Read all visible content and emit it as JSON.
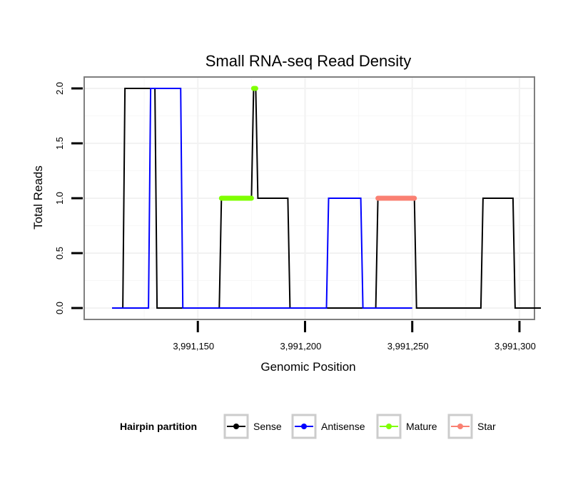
{
  "chart_data": {
    "type": "line",
    "title": "Small RNA-seq Read Density",
    "xlabel": "Genomic Position",
    "ylabel": "Total Reads",
    "xlim": [
      3991100,
      3991310
    ],
    "ylim": [
      0,
      2.05
    ],
    "x_ticks": [
      3991150,
      3991200,
      3991250,
      3991300
    ],
    "x_tick_labels": [
      "3,991,150",
      "3,991,200",
      "3,991,250",
      "3,991,300"
    ],
    "y_ticks": [
      0,
      0.5,
      1,
      1.5,
      2
    ],
    "y_tick_labels": [
      "0.0",
      "0.5",
      "1.0",
      "1.5",
      "2.0"
    ],
    "grid": true,
    "legend": {
      "title": "Hairpin partition",
      "position": "bottom",
      "entries": [
        {
          "label": "Sense",
          "color": "#000000"
        },
        {
          "label": "Antisense",
          "color": "#0000ff"
        },
        {
          "label": "Mature",
          "color": "#7fff00"
        },
        {
          "label": "Star",
          "color": "#fa8072"
        }
      ]
    },
    "series": [
      {
        "name": "Sense",
        "color": "#000000",
        "style": "line",
        "x": [
          3991110,
          3991115,
          3991116,
          3991130,
          3991131,
          3991160,
          3991161,
          3991175,
          3991176,
          3991177,
          3991178,
          3991192,
          3991193,
          3991233,
          3991234,
          3991251,
          3991252,
          3991282,
          3991283,
          3991297,
          3991298,
          3991310
        ],
        "y": [
          0,
          0,
          2,
          2,
          0,
          0,
          1,
          1,
          2,
          2,
          1,
          1,
          0,
          0,
          1,
          1,
          0,
          0,
          1,
          1,
          0,
          0
        ]
      },
      {
        "name": "Antisense",
        "color": "#0000ff",
        "style": "line",
        "x": [
          3991110,
          3991127,
          3991128,
          3991142,
          3991143,
          3991210,
          3991211,
          3991226,
          3991227,
          3991250
        ],
        "y": [
          0,
          0,
          2,
          2,
          0,
          0,
          1,
          1,
          0,
          0
        ]
      },
      {
        "name": "Mature",
        "color": "#7fff00",
        "style": "thick",
        "x": [
          3991161,
          3991175,
          3991176,
          3991177
        ],
        "y": [
          1,
          1,
          2,
          2
        ],
        "segments": [
          [
            3991161,
            3991175,
            1
          ],
          [
            3991176,
            3991177,
            2
          ]
        ]
      },
      {
        "name": "Star",
        "color": "#fa8072",
        "style": "thick",
        "x": [
          3991234,
          3991251
        ],
        "y": [
          1,
          1
        ],
        "segments": [
          [
            3991234,
            3991251,
            1
          ]
        ]
      }
    ]
  }
}
